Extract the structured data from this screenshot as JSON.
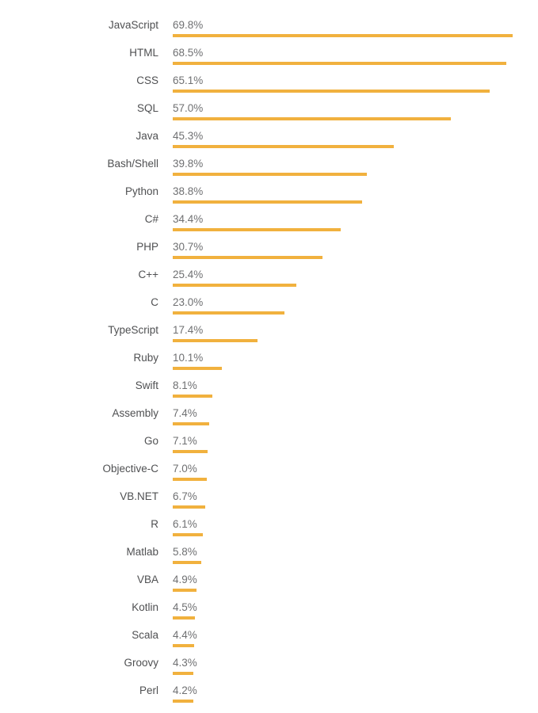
{
  "chart_data": {
    "type": "bar",
    "orientation": "horizontal",
    "title": "",
    "xlabel": "",
    "ylabel": "",
    "unit": "%",
    "grid": false,
    "legend": false,
    "xlim": [
      0,
      70
    ],
    "bar_color": "#f1b13e",
    "label_color": "#4f5052",
    "value_color": "#6f7072",
    "background_color": "#ffffff",
    "categories": [
      "JavaScript",
      "HTML",
      "CSS",
      "SQL",
      "Java",
      "Bash/Shell",
      "Python",
      "C#",
      "PHP",
      "C++",
      "C",
      "TypeScript",
      "Ruby",
      "Swift",
      "Assembly",
      "Go",
      "Objective-C",
      "VB.NET",
      "R",
      "Matlab",
      "VBA",
      "Kotlin",
      "Scala",
      "Groovy",
      "Perl"
    ],
    "values": [
      69.8,
      68.5,
      65.1,
      57.0,
      45.3,
      39.8,
      38.8,
      34.4,
      30.7,
      25.4,
      23.0,
      17.4,
      10.1,
      8.1,
      7.4,
      7.1,
      7.0,
      6.7,
      6.1,
      5.8,
      4.9,
      4.5,
      4.4,
      4.3,
      4.2
    ],
    "value_labels": [
      "69.8%",
      "68.5%",
      "65.1%",
      "57.0%",
      "45.3%",
      "39.8%",
      "38.8%",
      "34.4%",
      "30.7%",
      "25.4%",
      "23.0%",
      "17.4%",
      "10.1%",
      "8.1%",
      "7.4%",
      "7.1%",
      "7.0%",
      "6.7%",
      "6.1%",
      "5.8%",
      "4.9%",
      "4.5%",
      "4.4%",
      "4.3%",
      "4.2%"
    ]
  }
}
